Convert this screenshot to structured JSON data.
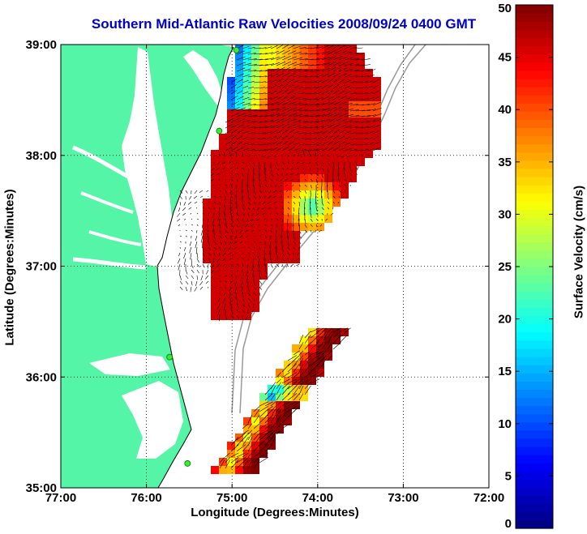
{
  "title": "Southern Mid-Atlantic Raw Velocities 2008/09/24 0400 GMT",
  "x_axis": {
    "label": "Longitude (Degrees:Minutes)",
    "ticks": [
      "77:00",
      "76:00",
      "75:00",
      "74:00",
      "73:00",
      "72:00"
    ]
  },
  "y_axis": {
    "label": "Latitude (Degrees:Minutes)",
    "ticks": [
      "39:00",
      "38:00",
      "37:00",
      "36:00",
      "35:00"
    ]
  },
  "map": {
    "lon_range": [
      -77,
      -72
    ],
    "lat_range": [
      35,
      39
    ],
    "land_color": "#55f5a8",
    "water_color": "#ffffff",
    "grid": "dotted",
    "station_color": "#33ee33",
    "stations": [
      {
        "lon": -74.95,
        "lat": 38.95
      },
      {
        "lon": -75.15,
        "lat": 38.22
      },
      {
        "lon": -75.73,
        "lat": 36.18
      },
      {
        "lon": -75.52,
        "lat": 35.22
      }
    ]
  },
  "colorbar": {
    "label": "Surface Velocity (cm/s)",
    "ticks": [
      "0",
      "5",
      "10",
      "15",
      "20",
      "25",
      "30",
      "35",
      "40",
      "45",
      "50"
    ],
    "min": 0,
    "max": 50,
    "colormap": "jet"
  }
}
